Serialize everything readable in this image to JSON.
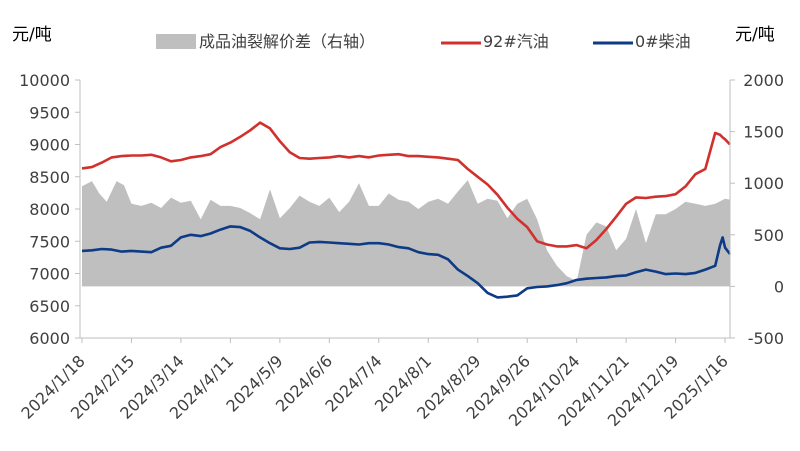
{
  "chart_data": {
    "type": "line",
    "left_unit": "元/吨",
    "right_unit": "元/吨",
    "legend": [
      "成品油裂解价差（右轴）",
      "92#汽油",
      "0#柴油"
    ],
    "x_labels": [
      "2024/1/18",
      "2024/2/15",
      "2024/3/14",
      "2024/4/11",
      "2024/5/9",
      "2024/6/6",
      "2024/7/4",
      "2024/8/1",
      "2024/8/29",
      "2024/9/26",
      "2024/10/24",
      "2024/11/21",
      "2024/12/19",
      "2025/1/16"
    ],
    "left_axis": {
      "ylim": [
        6000,
        10000
      ],
      "ticks": [
        6000,
        6500,
        7000,
        7500,
        8000,
        8500,
        9000,
        9500,
        10000
      ],
      "tick_labels": [
        "6000",
        "6500",
        "7000",
        "7500",
        "8000",
        "8500",
        "9000",
        "9500",
        "10000"
      ]
    },
    "right_axis": {
      "ylim": [
        -500,
        2000
      ],
      "ticks": [
        -500,
        0,
        500,
        1000,
        1500,
        2000
      ],
      "tick_labels": [
        "-500",
        "0",
        "500",
        "1000",
        "1500",
        "2000"
      ],
      "negative_color": "#ff0000"
    },
    "grid": false,
    "legend_position": "top",
    "colors": {
      "spread": "#bfbfbf",
      "gasoline": "#d0312d",
      "diesel": "#0d3b85",
      "axis": "#bfbfbf"
    },
    "series": [
      {
        "name": "成品油裂解价差（右轴）",
        "axis": "right",
        "type": "area",
        "x": [
          0,
          0.2,
          0.35,
          0.5,
          0.7,
          0.85,
          1,
          1.2,
          1.4,
          1.6,
          1.8,
          2,
          2.2,
          2.4,
          2.6,
          2.8,
          3,
          3.2,
          3.4,
          3.6,
          3.8,
          4,
          4.2,
          4.4,
          4.6,
          4.8,
          5,
          5.2,
          5.4,
          5.6,
          5.8,
          6,
          6.2,
          6.4,
          6.6,
          6.8,
          7,
          7.2,
          7.4,
          7.6,
          7.8,
          8,
          8.2,
          8.4,
          8.6,
          8.8,
          9,
          9.2,
          9.4,
          9.6,
          9.8,
          10,
          10.2,
          10.4,
          10.6,
          10.8,
          11,
          11.2,
          11.4,
          11.6,
          11.8,
          12,
          12.2,
          12.4,
          12.6,
          12.8,
          13,
          13.1
        ],
        "y": [
          970,
          1020,
          900,
          820,
          1020,
          980,
          800,
          780,
          810,
          760,
          860,
          810,
          830,
          650,
          840,
          780,
          780,
          760,
          710,
          650,
          940,
          660,
          760,
          880,
          820,
          780,
          860,
          720,
          820,
          1000,
          780,
          780,
          900,
          840,
          820,
          750,
          820,
          850,
          800,
          920,
          1030,
          800,
          850,
          830,
          660,
          800,
          850,
          650,
          350,
          200,
          100,
          50,
          500,
          620,
          580,
          350,
          460,
          750,
          420,
          700,
          700,
          750,
          820,
          800,
          780,
          800,
          850,
          840
        ]
      },
      {
        "name": "92#汽油",
        "axis": "left",
        "type": "line",
        "x": [
          0,
          0.2,
          0.4,
          0.6,
          0.8,
          1,
          1.2,
          1.4,
          1.6,
          1.8,
          2,
          2.2,
          2.4,
          2.6,
          2.8,
          3,
          3.2,
          3.4,
          3.6,
          3.8,
          4,
          4.2,
          4.4,
          4.6,
          4.8,
          5,
          5.2,
          5.4,
          5.6,
          5.8,
          6,
          6.2,
          6.4,
          6.6,
          6.8,
          7,
          7.2,
          7.4,
          7.6,
          7.8,
          8,
          8.2,
          8.4,
          8.6,
          8.8,
          9,
          9.2,
          9.4,
          9.6,
          9.8,
          10,
          10.2,
          10.4,
          10.6,
          10.8,
          11,
          11.2,
          11.4,
          11.6,
          11.8,
          12,
          12.2,
          12.4,
          12.6,
          12.8,
          12.9,
          12.95,
          13,
          13.1
        ],
        "y": [
          8630,
          8650,
          8720,
          8800,
          8820,
          8830,
          8830,
          8840,
          8800,
          8740,
          8760,
          8800,
          8820,
          8850,
          8960,
          9030,
          9120,
          9220,
          9340,
          9250,
          9050,
          8880,
          8790,
          8780,
          8790,
          8800,
          8820,
          8800,
          8820,
          8800,
          8830,
          8840,
          8850,
          8820,
          8820,
          8810,
          8800,
          8780,
          8760,
          8620,
          8500,
          8380,
          8220,
          8020,
          7850,
          7720,
          7500,
          7450,
          7420,
          7420,
          7440,
          7390,
          7520,
          7690,
          7880,
          8080,
          8180,
          8170,
          8190,
          8200,
          8230,
          8350,
          8540,
          8620,
          9180,
          9150,
          9110,
          9080,
          9000
        ]
      },
      {
        "name": "0#柴油",
        "axis": "left",
        "type": "line",
        "x": [
          0,
          0.2,
          0.4,
          0.6,
          0.8,
          1,
          1.2,
          1.4,
          1.6,
          1.8,
          2,
          2.2,
          2.4,
          2.6,
          2.8,
          3,
          3.2,
          3.4,
          3.6,
          3.8,
          4,
          4.2,
          4.4,
          4.6,
          4.8,
          5,
          5.2,
          5.4,
          5.6,
          5.8,
          6,
          6.2,
          6.4,
          6.6,
          6.8,
          7,
          7.2,
          7.4,
          7.6,
          7.8,
          8,
          8.2,
          8.4,
          8.6,
          8.8,
          9,
          9.2,
          9.4,
          9.6,
          9.8,
          10,
          10.2,
          10.4,
          10.6,
          10.8,
          11,
          11.2,
          11.4,
          11.6,
          11.8,
          12,
          12.2,
          12.4,
          12.6,
          12.8,
          12.9,
          12.95,
          13,
          13.1
        ],
        "y": [
          7350,
          7360,
          7380,
          7370,
          7340,
          7350,
          7340,
          7330,
          7400,
          7430,
          7560,
          7600,
          7580,
          7620,
          7680,
          7730,
          7720,
          7660,
          7560,
          7470,
          7390,
          7380,
          7400,
          7480,
          7490,
          7480,
          7470,
          7460,
          7450,
          7470,
          7470,
          7450,
          7410,
          7390,
          7330,
          7300,
          7290,
          7220,
          7060,
          6960,
          6850,
          6700,
          6630,
          6640,
          6660,
          6770,
          6790,
          6800,
          6820,
          6850,
          6900,
          6920,
          6930,
          6940,
          6960,
          6970,
          7020,
          7060,
          7030,
          6990,
          7000,
          6990,
          7010,
          7060,
          7120,
          7440,
          7560,
          7400,
          7300
        ]
      }
    ]
  }
}
